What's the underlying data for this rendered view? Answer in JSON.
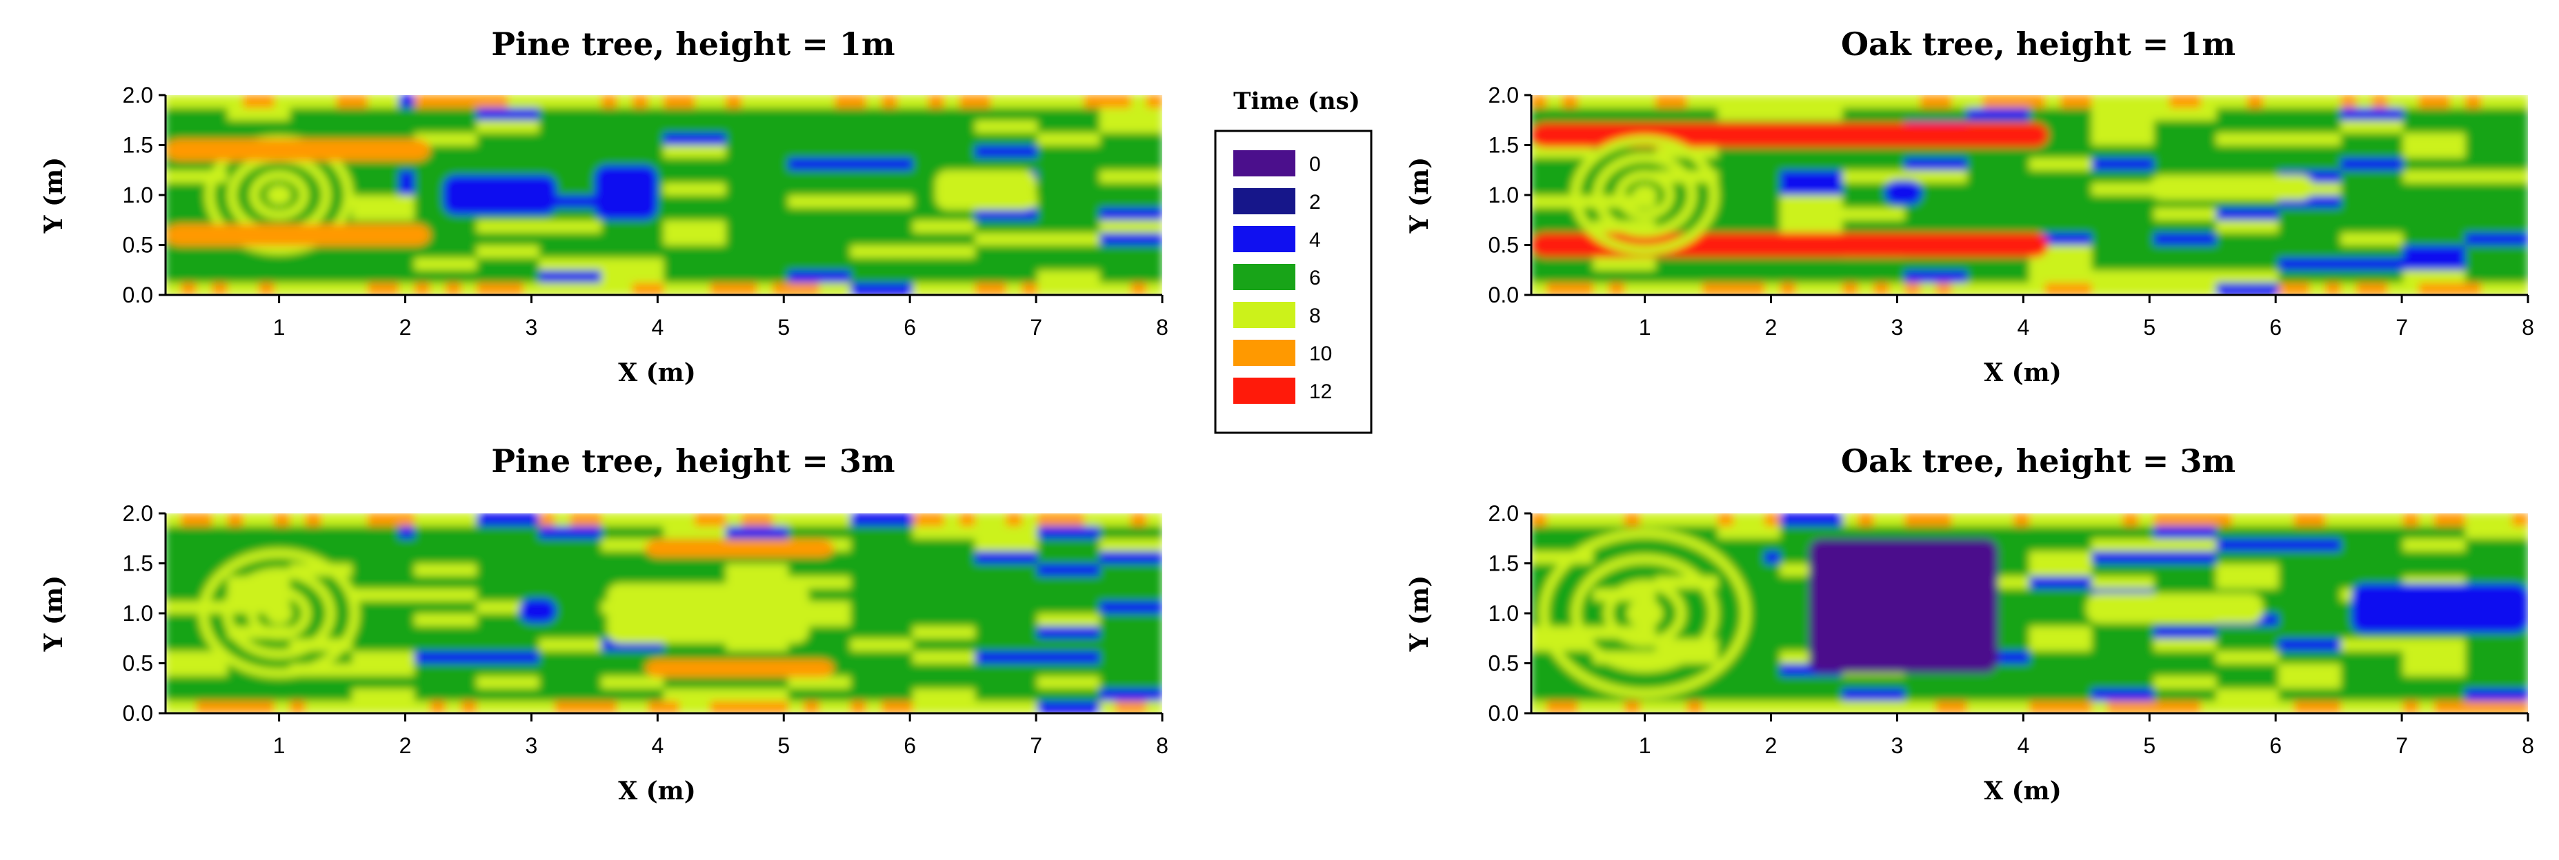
{
  "chart_data": [
    {
      "type": "heatmap",
      "title": "Pine tree, height = 1m",
      "xlabel": "X (m)",
      "ylabel": "Y (m)",
      "xlim": [
        0.1,
        8
      ],
      "ylim": [
        0,
        2
      ],
      "x_ticks": [
        "1",
        "2",
        "3",
        "4",
        "5",
        "6",
        "7",
        "8"
      ],
      "y_ticks": [
        "0.0",
        "0.5",
        "1.0",
        "1.5",
        "2.0"
      ],
      "pattern": "pine",
      "features": [
        {
          "kind": "ring",
          "cx": 1.0,
          "cy": 1.0,
          "r": 0.55,
          "value": 8
        },
        {
          "kind": "band",
          "x0": 0.1,
          "x1": 2.2,
          "y": 0.6,
          "h": 0.22,
          "value": 10
        },
        {
          "kind": "band",
          "x0": 0.1,
          "x1": 2.2,
          "y": 1.45,
          "h": 0.22,
          "value": 10
        },
        {
          "kind": "blob",
          "x0": 2.3,
          "x1": 3.2,
          "y0": 0.8,
          "y1": 1.2,
          "value": 4
        },
        {
          "kind": "blob",
          "x0": 3.5,
          "x1": 4.0,
          "y0": 0.75,
          "y1": 1.3,
          "value": 4
        },
        {
          "kind": "blob",
          "x0": 6.2,
          "x1": 7.0,
          "y0": 0.85,
          "y1": 1.25,
          "value": 8
        }
      ]
    },
    {
      "type": "heatmap",
      "title": "Oak tree, height = 1m",
      "xlabel": "X (m)",
      "ylabel": "Y (m)",
      "xlim": [
        0.1,
        8
      ],
      "ylim": [
        0,
        2
      ],
      "x_ticks": [
        "1",
        "2",
        "3",
        "4",
        "5",
        "6",
        "7",
        "8"
      ],
      "y_ticks": [
        "0.0",
        "0.5",
        "1.0",
        "1.5",
        "2.0"
      ],
      "pattern": "oak",
      "features": [
        {
          "kind": "band",
          "x0": 0.1,
          "x1": 4.2,
          "y": 0.5,
          "h": 0.25,
          "value": 12
        },
        {
          "kind": "band",
          "x0": 0.1,
          "x1": 4.2,
          "y": 1.6,
          "h": 0.25,
          "value": 12
        },
        {
          "kind": "ring",
          "cx": 1.0,
          "cy": 1.0,
          "r": 0.55,
          "value": 8
        },
        {
          "kind": "blob",
          "x0": 2.9,
          "x1": 3.2,
          "y0": 0.9,
          "y1": 1.15,
          "value": 4
        },
        {
          "kind": "blob",
          "x0": 5.0,
          "x1": 6.3,
          "y0": 0.95,
          "y1": 1.2,
          "value": 8
        }
      ]
    },
    {
      "type": "heatmap",
      "title": "Pine tree, height = 3m",
      "xlabel": "X (m)",
      "ylabel": "Y (m)",
      "xlim": [
        0.1,
        8
      ],
      "ylim": [
        0,
        2
      ],
      "x_ticks": [
        "1",
        "2",
        "3",
        "4",
        "5",
        "6",
        "7",
        "8"
      ],
      "y_ticks": [
        "0.0",
        "0.5",
        "1.0",
        "1.5",
        "2.0"
      ],
      "pattern": "pine3",
      "features": [
        {
          "kind": "ring",
          "cx": 1.0,
          "cy": 1.0,
          "r": 0.6,
          "value": 8
        },
        {
          "kind": "band",
          "x0": 3.9,
          "x1": 5.4,
          "y": 1.65,
          "h": 0.18,
          "value": 10
        },
        {
          "kind": "band",
          "x0": 3.9,
          "x1": 5.4,
          "y": 0.45,
          "h": 0.18,
          "value": 10
        },
        {
          "kind": "blob",
          "x0": 2.9,
          "x1": 3.2,
          "y0": 0.9,
          "y1": 1.15,
          "value": 4
        },
        {
          "kind": "blob",
          "x0": 3.6,
          "x1": 5.2,
          "y0": 0.7,
          "y1": 1.3,
          "value": 8
        }
      ]
    },
    {
      "type": "heatmap",
      "title": "Oak tree, height = 3m",
      "xlabel": "X (m)",
      "ylabel": "Y (m)",
      "xlim": [
        0.1,
        8
      ],
      "ylim": [
        0,
        2
      ],
      "x_ticks": [
        "1",
        "2",
        "3",
        "4",
        "5",
        "6",
        "7",
        "8"
      ],
      "y_ticks": [
        "0.0",
        "0.5",
        "1.0",
        "1.5",
        "2.0"
      ],
      "pattern": "oak3",
      "features": [
        {
          "kind": "ring",
          "cx": 1.0,
          "cy": 1.0,
          "r": 0.8,
          "value": 8
        },
        {
          "kind": "blob",
          "x0": 2.3,
          "x1": 3.8,
          "y0": 0.4,
          "y1": 1.75,
          "value": 0
        },
        {
          "kind": "blob",
          "x0": 4.5,
          "x1": 5.9,
          "y0": 0.9,
          "y1": 1.2,
          "value": 8
        },
        {
          "kind": "blob",
          "x0": 6.6,
          "x1": 8.0,
          "y0": 0.8,
          "y1": 1.3,
          "value": 4
        }
      ]
    }
  ],
  "legend": {
    "title": "Time (ns)",
    "items": [
      {
        "label": "0",
        "color": "#4b0f8c"
      },
      {
        "label": "2",
        "color": "#16168a"
      },
      {
        "label": "4",
        "color": "#1010f0"
      },
      {
        "label": "6",
        "color": "#18a418"
      },
      {
        "label": "8",
        "color": "#ccf21a"
      },
      {
        "label": "10",
        "color": "#ff9900"
      },
      {
        "label": "12",
        "color": "#ff1a0a"
      }
    ]
  }
}
